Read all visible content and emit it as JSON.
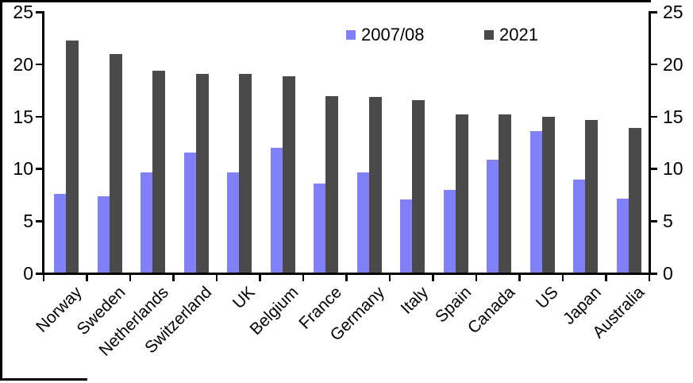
{
  "chart_data": {
    "type": "bar",
    "title": "",
    "xlabel": "",
    "ylabel": "",
    "categories": [
      "Norway",
      "Sweden",
      "Netherlands",
      "Switzerland",
      "UK",
      "Belgium",
      "France",
      "Germany",
      "Italy",
      "Spain",
      "Canada",
      "US",
      "Japan",
      "Australia"
    ],
    "series": [
      {
        "name": "2007/08",
        "color": "#8080f8",
        "values": [
          7.5,
          7.3,
          9.6,
          11.5,
          9.6,
          11.9,
          8.5,
          9.6,
          7.0,
          7.9,
          10.8,
          13.5,
          8.9,
          7.1
        ]
      },
      {
        "name": "2021",
        "color": "#4a4a4a",
        "values": [
          22.2,
          20.9,
          19.3,
          19.0,
          19.0,
          18.8,
          16.9,
          16.8,
          16.5,
          15.1,
          15.1,
          14.9,
          14.6,
          13.8
        ]
      }
    ],
    "ylim": [
      0,
      25
    ],
    "yticks": [
      0,
      5,
      10,
      15,
      20,
      25
    ],
    "secondary_y_axis": true,
    "legend_position": "top-center",
    "grid": false,
    "axis_color": "#000000",
    "background_color": "#ffffff"
  }
}
